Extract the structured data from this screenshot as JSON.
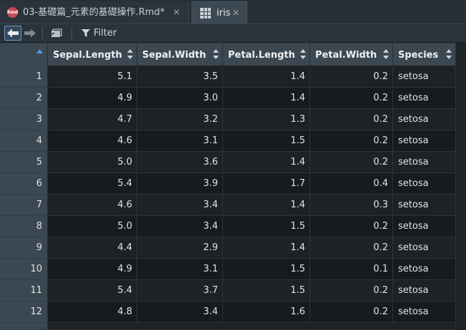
{
  "tabs": [
    {
      "label": "03-基礎篇_元素的基礎操作.Rmd*",
      "icon": "rmd-file-icon",
      "active": false
    },
    {
      "label": "iris",
      "icon": "data-grid-icon",
      "active": true
    }
  ],
  "toolbar": {
    "filter_label": "Filter"
  },
  "table": {
    "columns": [
      "Sepal.Length",
      "Sepal.Width",
      "Petal.Length",
      "Petal.Width",
      "Species"
    ],
    "rows": [
      {
        "n": "1",
        "c": [
          "5.1",
          "3.5",
          "1.4",
          "0.2",
          "setosa"
        ]
      },
      {
        "n": "2",
        "c": [
          "4.9",
          "3.0",
          "1.4",
          "0.2",
          "setosa"
        ]
      },
      {
        "n": "3",
        "c": [
          "4.7",
          "3.2",
          "1.3",
          "0.2",
          "setosa"
        ]
      },
      {
        "n": "4",
        "c": [
          "4.6",
          "3.1",
          "1.5",
          "0.2",
          "setosa"
        ]
      },
      {
        "n": "5",
        "c": [
          "5.0",
          "3.6",
          "1.4",
          "0.2",
          "setosa"
        ]
      },
      {
        "n": "6",
        "c": [
          "5.4",
          "3.9",
          "1.7",
          "0.4",
          "setosa"
        ]
      },
      {
        "n": "7",
        "c": [
          "4.6",
          "3.4",
          "1.4",
          "0.3",
          "setosa"
        ]
      },
      {
        "n": "8",
        "c": [
          "5.0",
          "3.4",
          "1.5",
          "0.2",
          "setosa"
        ]
      },
      {
        "n": "9",
        "c": [
          "4.4",
          "2.9",
          "1.4",
          "0.2",
          "setosa"
        ]
      },
      {
        "n": "10",
        "c": [
          "4.9",
          "3.1",
          "1.5",
          "0.1",
          "setosa"
        ]
      },
      {
        "n": "11",
        "c": [
          "5.4",
          "3.7",
          "1.5",
          "0.2",
          "setosa"
        ]
      },
      {
        "n": "12",
        "c": [
          "4.8",
          "3.4",
          "1.6",
          "0.2",
          "setosa"
        ]
      }
    ]
  }
}
